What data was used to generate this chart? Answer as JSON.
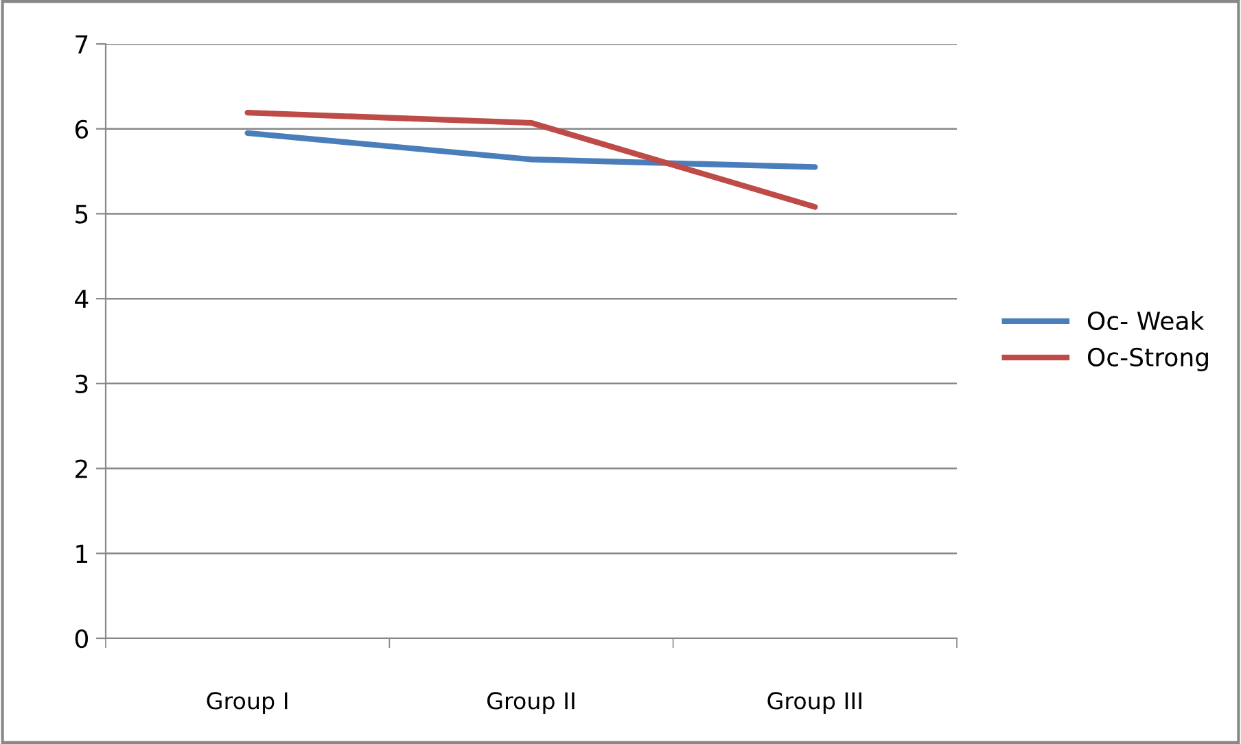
{
  "chart_data": {
    "type": "line",
    "categories": [
      "Group I",
      "Group II",
      "Group III"
    ],
    "series": [
      {
        "name": "Oc- Weak",
        "color": "#4a7ebb",
        "values": [
          5.95,
          5.64,
          5.55
        ]
      },
      {
        "name": "Oc-Strong",
        "color": "#be4b48",
        "values": [
          6.19,
          6.07,
          5.08
        ]
      }
    ],
    "ylim": [
      0,
      7
    ],
    "yticks": [
      0,
      1,
      2,
      3,
      4,
      5,
      6,
      7
    ],
    "grid": "y",
    "legend": "right",
    "marker": "none",
    "line_style": "solid"
  }
}
